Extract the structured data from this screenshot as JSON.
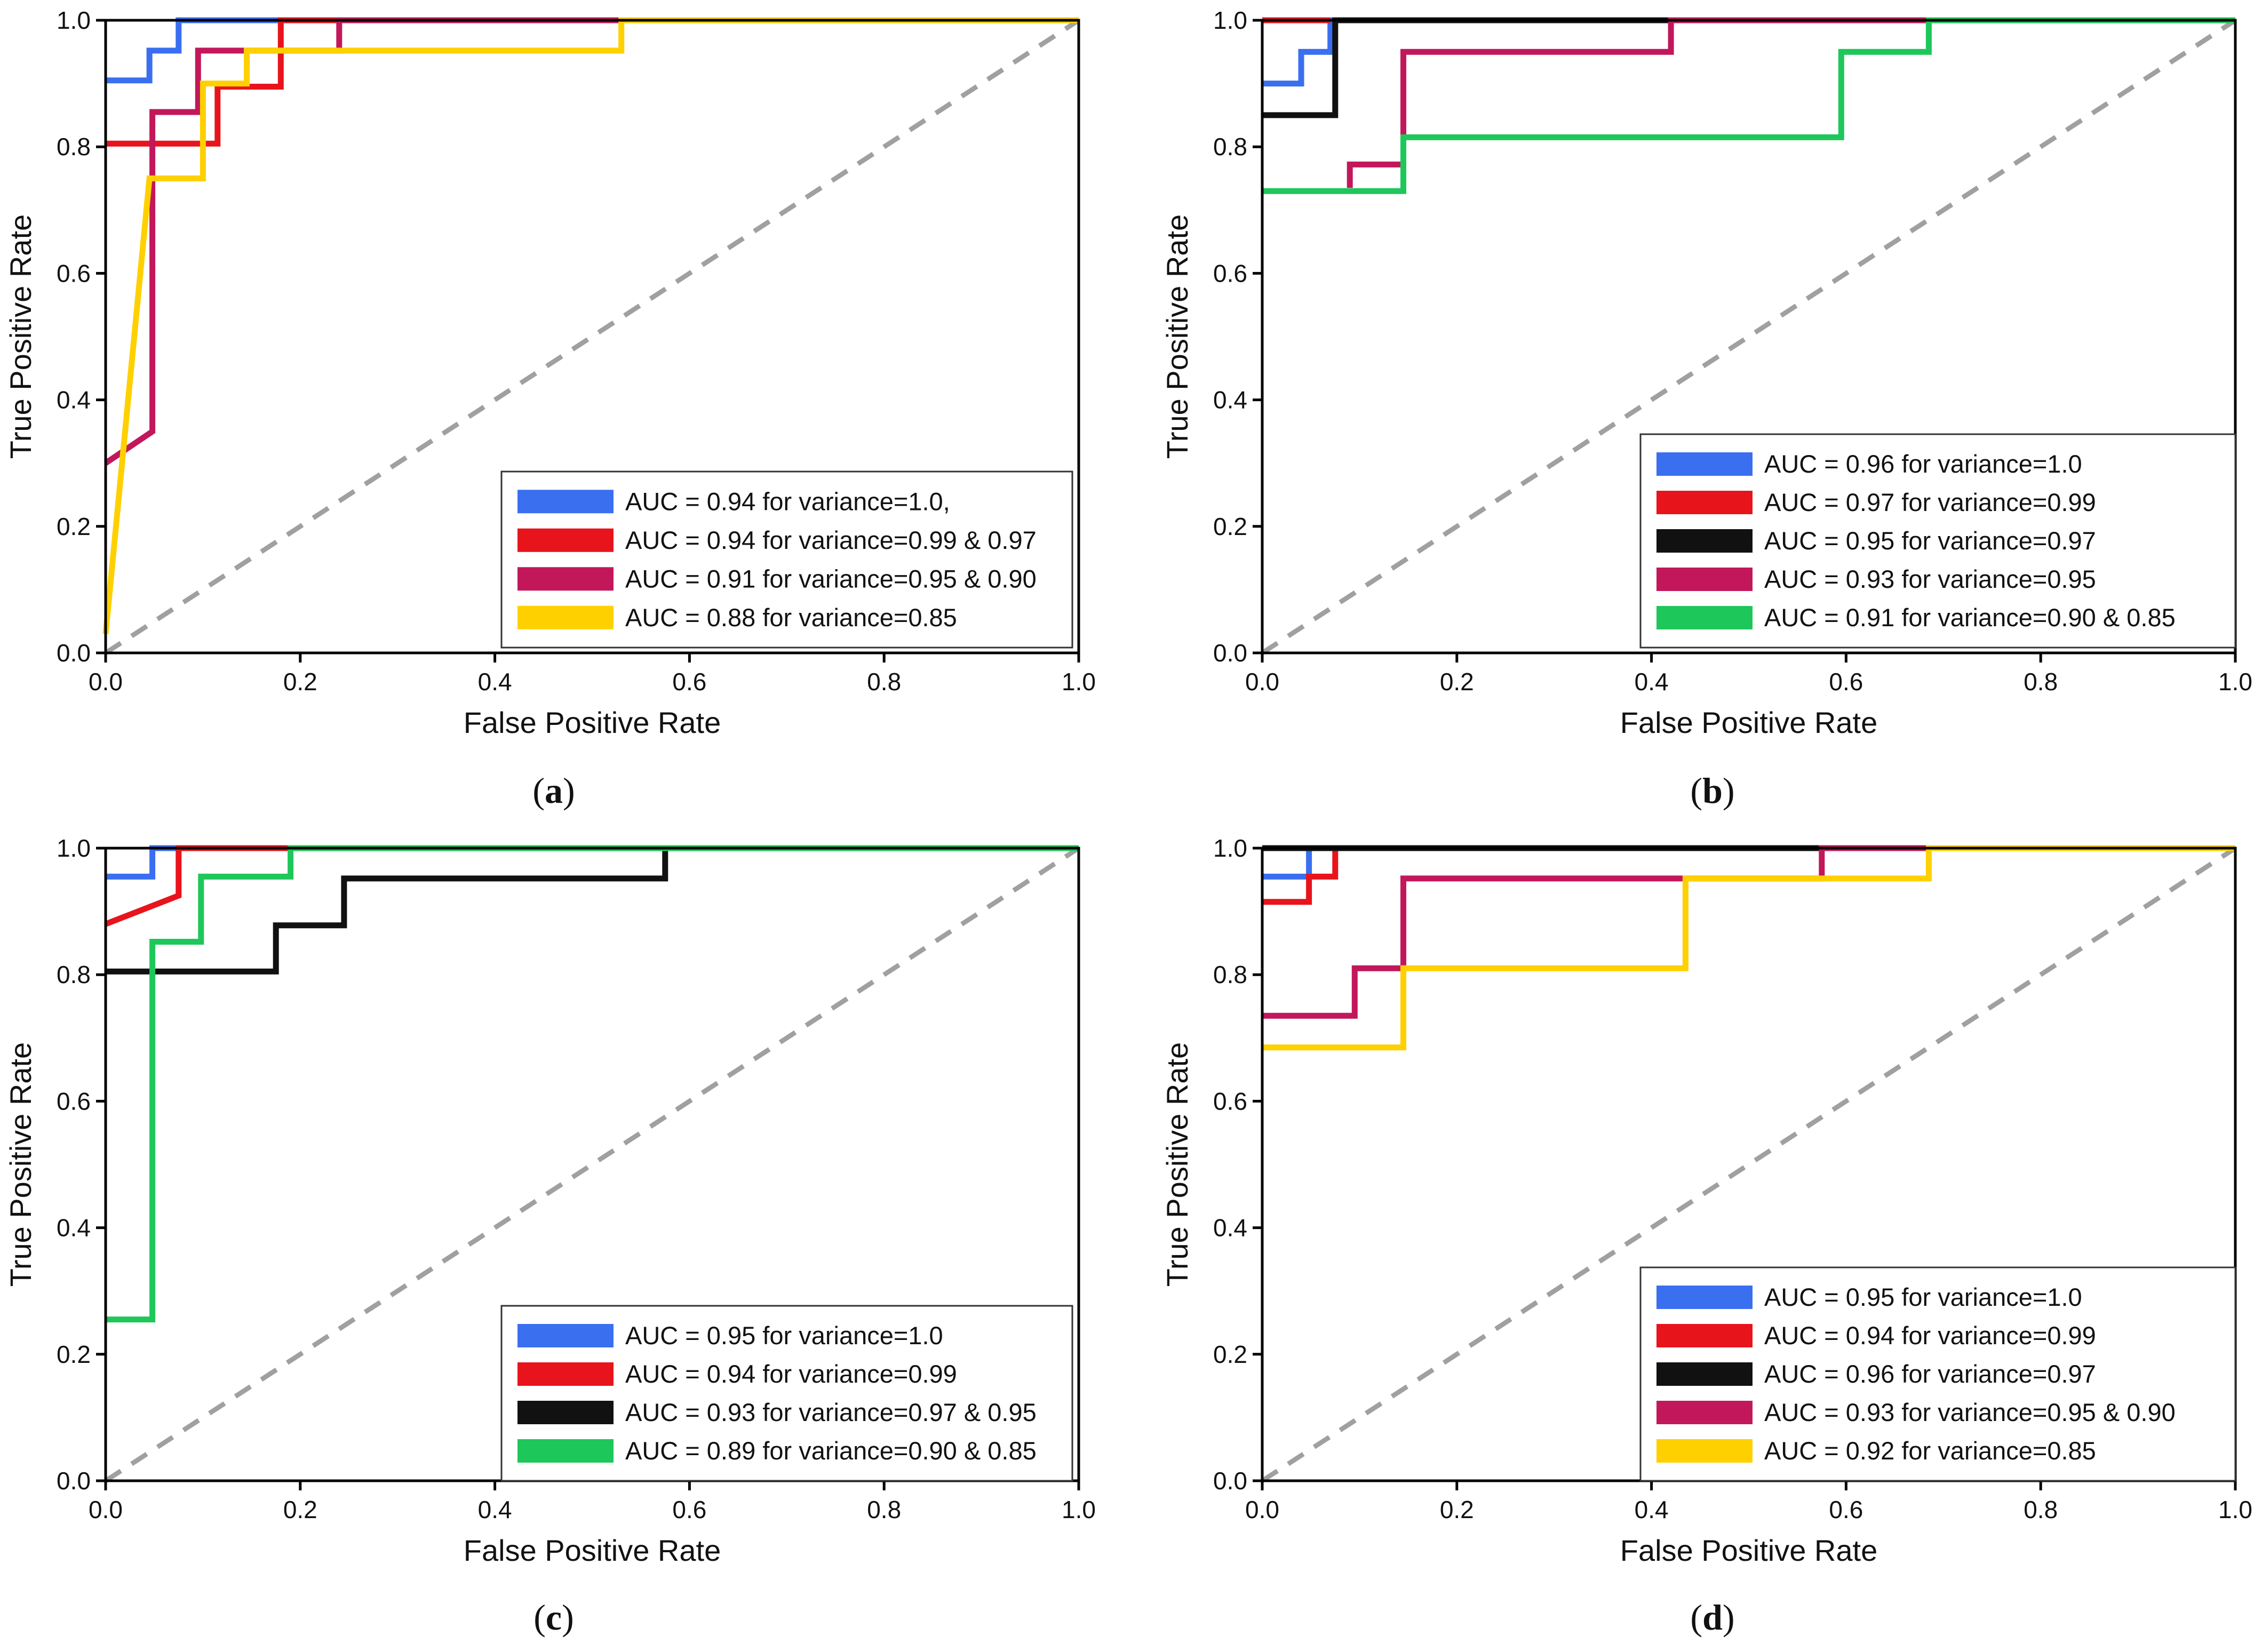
{
  "figure": {
    "panel_count": 4
  },
  "chart_data": [
    {
      "panel": "a",
      "type": "line",
      "subtype": "roc-step",
      "xlabel": "False Positive Rate",
      "ylabel": "True Positive Rate",
      "xlim": [
        0,
        1.0
      ],
      "ylim": [
        0,
        1.0
      ],
      "xticks": [
        "0.0",
        "0.2",
        "0.4",
        "0.6",
        "0.8",
        "1.0"
      ],
      "yticks": [
        "0.0",
        "0.2",
        "0.4",
        "0.6",
        "0.8",
        "1.0"
      ],
      "legend_position": "lower-right",
      "diagonal": {
        "color": "#a0a0a0",
        "style": "dashed"
      },
      "series": [
        {
          "name": "AUC = 0.94 for variance=1.0,",
          "color": "#3a6ff0",
          "points": [
            [
              0,
              0.905
            ],
            [
              0.045,
              0.905
            ],
            [
              0.045,
              0.952
            ],
            [
              0.075,
              0.952
            ],
            [
              0.075,
              1.0
            ],
            [
              1.0,
              1.0
            ]
          ]
        },
        {
          "name": "AUC = 0.94 for variance=0.99 & 0.97",
          "color": "#e8141c",
          "points": [
            [
              0,
              0.805
            ],
            [
              0.115,
              0.805
            ],
            [
              0.115,
              0.895
            ],
            [
              0.18,
              0.895
            ],
            [
              0.18,
              1.0
            ],
            [
              1.0,
              1.0
            ]
          ]
        },
        {
          "name": "AUC = 0.91 for variance=0.95 & 0.90",
          "color": "#c2185b",
          "points": [
            [
              0,
              0.3
            ],
            [
              0.048,
              0.35
            ],
            [
              0.048,
              0.855
            ],
            [
              0.095,
              0.855
            ],
            [
              0.095,
              0.952
            ],
            [
              0.145,
              0.952
            ],
            [
              0.145,
              0.952
            ],
            [
              0.24,
              0.952
            ],
            [
              0.24,
              1.0
            ],
            [
              1.0,
              1.0
            ]
          ]
        },
        {
          "name": "AUC = 0.88 for variance=0.85",
          "color": "#ffd000",
          "points": [
            [
              0,
              0.03
            ],
            [
              0.045,
              0.75
            ],
            [
              0.1,
              0.75
            ],
            [
              0.1,
              0.9
            ],
            [
              0.145,
              0.9
            ],
            [
              0.145,
              0.952
            ],
            [
              0.53,
              0.952
            ],
            [
              0.53,
              1.0
            ],
            [
              1.0,
              1.0
            ]
          ]
        }
      ]
    },
    {
      "panel": "b",
      "type": "line",
      "subtype": "roc-step",
      "xlabel": "False Positive Rate",
      "ylabel": "True Positive Rate",
      "xlim": [
        0,
        1.0
      ],
      "ylim": [
        0,
        1.0
      ],
      "xticks": [
        "0.0",
        "0.2",
        "0.4",
        "0.6",
        "0.8",
        "1.0"
      ],
      "yticks": [
        "0.0",
        "0.2",
        "0.4",
        "0.6",
        "0.8",
        "1.0"
      ],
      "legend_position": "lower-right",
      "diagonal": {
        "color": "#a0a0a0",
        "style": "dashed"
      },
      "series": [
        {
          "name": "AUC = 0.96 for variance=1.0",
          "color": "#3a6ff0",
          "points": [
            [
              0,
              0.9
            ],
            [
              0.04,
              0.9
            ],
            [
              0.04,
              0.95
            ],
            [
              0.07,
              0.95
            ],
            [
              0.07,
              1.0
            ],
            [
              1.0,
              1.0
            ]
          ]
        },
        {
          "name": "AUC = 0.97 for variance=0.99",
          "color": "#e8141c",
          "points": [
            [
              0,
              1.0
            ],
            [
              0.07,
              1.0
            ]
          ]
        },
        {
          "name": "AUC = 0.95 for variance=0.97",
          "color": "#111111",
          "points": [
            [
              0,
              0.85
            ],
            [
              0.075,
              0.85
            ],
            [
              0.075,
              1.0
            ],
            [
              0.42,
              1.0
            ]
          ]
        },
        {
          "name": "AUC = 0.93 for variance=0.95",
          "color": "#c2185b",
          "points": [
            [
              0.09,
              0.735
            ],
            [
              0.09,
              0.772
            ],
            [
              0.145,
              0.772
            ],
            [
              0.145,
              0.95
            ],
            [
              0.42,
              0.95
            ],
            [
              0.42,
              1.0
            ],
            [
              0.685,
              1.0
            ]
          ]
        },
        {
          "name": "AUC = 0.91 for variance=0.90 & 0.85",
          "color": "#1ec75a",
          "points": [
            [
              0,
              0.73
            ],
            [
              0.145,
              0.73
            ],
            [
              0.145,
              0.815
            ],
            [
              0.595,
              0.815
            ],
            [
              0.595,
              0.95
            ],
            [
              0.685,
              0.95
            ],
            [
              0.685,
              1.0
            ],
            [
              1.0,
              1.0
            ]
          ]
        }
      ]
    },
    {
      "panel": "c",
      "type": "line",
      "subtype": "roc-step",
      "xlabel": "False Positive Rate",
      "ylabel": "True Positive Rate",
      "xlim": [
        0,
        1.0
      ],
      "ylim": [
        0,
        1.0
      ],
      "xticks": [
        "0.0",
        "0.2",
        "0.4",
        "0.6",
        "0.8",
        "1.0"
      ],
      "yticks": [
        "0.0",
        "0.2",
        "0.4",
        "0.6",
        "0.8",
        "1.0"
      ],
      "legend_position": "lower-right",
      "diagonal": {
        "color": "#a0a0a0",
        "style": "dashed"
      },
      "series": [
        {
          "name": "AUC = 0.95 for variance=1.0",
          "color": "#3a6ff0",
          "points": [
            [
              0,
              0.955
            ],
            [
              0.048,
              0.955
            ],
            [
              0.048,
              1.0
            ],
            [
              0.075,
              1.0
            ]
          ]
        },
        {
          "name": "AUC = 0.94 for variance=0.99",
          "color": "#e8141c",
          "points": [
            [
              0,
              0.88
            ],
            [
              0.075,
              0.925
            ],
            [
              0.075,
              1.0
            ],
            [
              0.19,
              1.0
            ]
          ]
        },
        {
          "name": "AUC = 0.93 for variance=0.97 & 0.95",
          "color": "#111111",
          "points": [
            [
              0,
              0.805
            ],
            [
              0.175,
              0.805
            ],
            [
              0.175,
              0.878
            ],
            [
              0.245,
              0.878
            ],
            [
              0.245,
              0.952
            ],
            [
              0.575,
              0.952
            ],
            [
              0.575,
              1.0
            ]
          ]
        },
        {
          "name": "AUC = 0.89 for variance=0.90 & 0.85",
          "color": "#1ec75a",
          "points": [
            [
              0,
              0.255
            ],
            [
              0.048,
              0.255
            ],
            [
              0.048,
              0.852
            ],
            [
              0.098,
              0.852
            ],
            [
              0.098,
              0.955
            ],
            [
              0.19,
              0.955
            ],
            [
              0.19,
              1.0
            ],
            [
              1.0,
              1.0
            ]
          ]
        }
      ]
    },
    {
      "panel": "d",
      "type": "line",
      "subtype": "roc-step",
      "xlabel": "False Positive Rate",
      "ylabel": "True Positive Rate",
      "xlim": [
        0,
        1.0
      ],
      "ylim": [
        0,
        1.0
      ],
      "xticks": [
        "0.0",
        "0.2",
        "0.4",
        "0.6",
        "0.8",
        "1.0"
      ],
      "yticks": [
        "0.0",
        "0.2",
        "0.4",
        "0.6",
        "0.8",
        "1.0"
      ],
      "legend_position": "lower-right",
      "diagonal": {
        "color": "#a0a0a0",
        "style": "dashed"
      },
      "series": [
        {
          "name": "AUC = 0.95 for variance=1.0",
          "color": "#3a6ff0",
          "points": [
            [
              0,
              0.955
            ],
            [
              0.048,
              0.955
            ],
            [
              0.048,
              1.0
            ],
            [
              0.075,
              1.0
            ]
          ]
        },
        {
          "name": "AUC = 0.94 for variance=0.99",
          "color": "#e8141c",
          "points": [
            [
              0,
              0.915
            ],
            [
              0.048,
              0.915
            ],
            [
              0.048,
              0.955
            ],
            [
              0.075,
              0.955
            ],
            [
              0.075,
              1.0
            ]
          ]
        },
        {
          "name": "AUC = 0.96 for variance=0.97",
          "color": "#111111",
          "points": [
            [
              0,
              1.0
            ],
            [
              0.575,
              1.0
            ]
          ]
        },
        {
          "name": "AUC = 0.93 for variance=0.95 & 0.90",
          "color": "#c2185b",
          "points": [
            [
              0,
              0.735
            ],
            [
              0.095,
              0.735
            ],
            [
              0.095,
              0.81
            ],
            [
              0.145,
              0.81
            ],
            [
              0.145,
              0.952
            ],
            [
              0.575,
              0.952
            ],
            [
              0.575,
              1.0
            ],
            [
              0.685,
              1.0
            ]
          ]
        },
        {
          "name": "AUC = 0.92 for variance=0.85",
          "color": "#ffd000",
          "points": [
            [
              0,
              0.685
            ],
            [
              0.145,
              0.685
            ],
            [
              0.145,
              0.81
            ],
            [
              0.435,
              0.81
            ],
            [
              0.435,
              0.952
            ],
            [
              0.685,
              0.952
            ],
            [
              0.685,
              1.0
            ],
            [
              1.0,
              1.0
            ]
          ]
        }
      ]
    }
  ]
}
